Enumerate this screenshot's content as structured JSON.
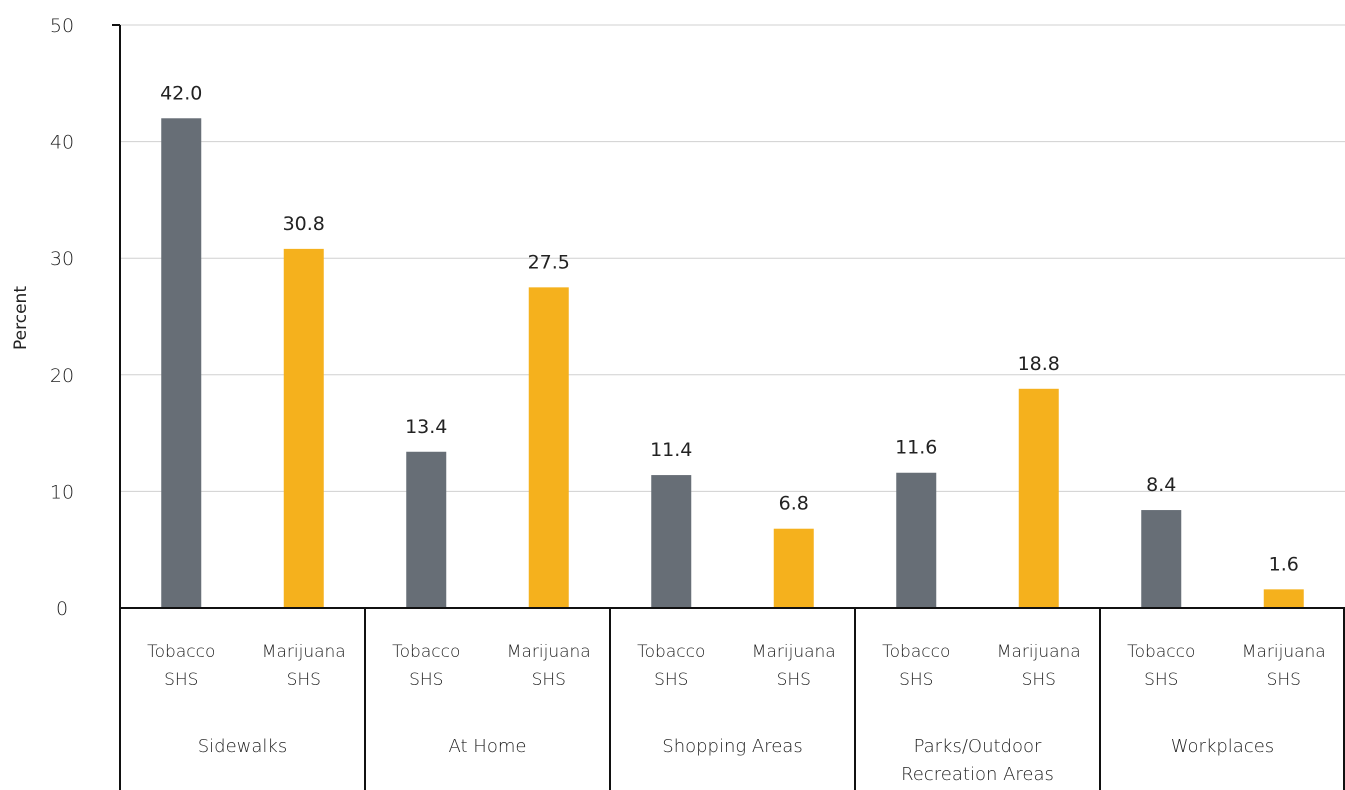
{
  "chart_data": {
    "type": "bar",
    "ylabel": "Percent",
    "ylim": [
      0,
      50
    ],
    "yticks": [
      0,
      10,
      20,
      30,
      40,
      50
    ],
    "grid": true,
    "categories": [
      {
        "name": "Sidewalks",
        "lines": [
          "Sidewalks"
        ]
      },
      {
        "name": "At Home",
        "lines": [
          "At Home"
        ]
      },
      {
        "name": "Shopping Areas",
        "lines": [
          "Shopping Areas"
        ]
      },
      {
        "name": "Parks/Outdoor Recreation Areas",
        "lines": [
          "Parks/Outdoor",
          "Recreation Areas"
        ]
      },
      {
        "name": "Workplaces",
        "lines": [
          "Workplaces"
        ]
      }
    ],
    "series": [
      {
        "name": "Tobacco SHS",
        "label_lines": [
          "Tobacco",
          "SHS"
        ],
        "color": "#676e76",
        "values": [
          42.0,
          13.4,
          11.4,
          11.6,
          8.4
        ]
      },
      {
        "name": "Marijuana SHS",
        "label_lines": [
          "Marijuana",
          "SHS"
        ],
        "color": "#f5b11d",
        "values": [
          30.8,
          27.5,
          6.8,
          18.8,
          1.6
        ]
      }
    ]
  }
}
